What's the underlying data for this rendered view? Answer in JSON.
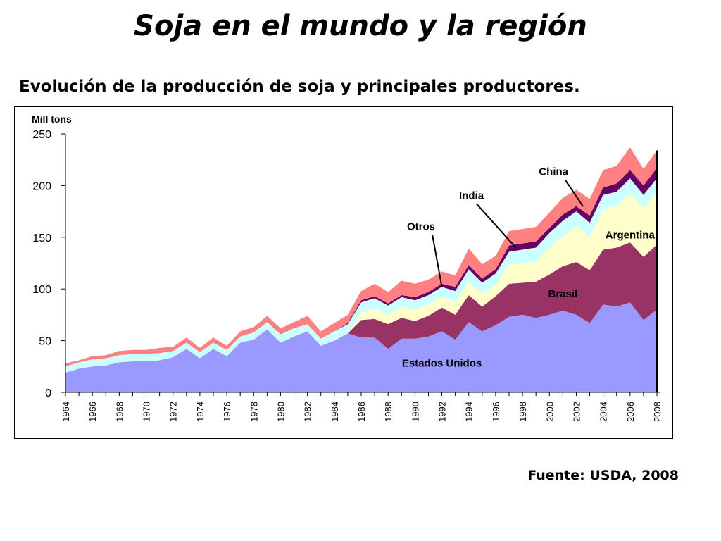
{
  "slide": {
    "title": "Soja en el mundo y la región",
    "subtitle": "Evolución de la producción de soja y principales productores.",
    "source": "Fuente: USDA, 2008"
  },
  "chart_data": {
    "type": "area",
    "stacked": true,
    "ylabel": "Mill tons",
    "ylim": [
      0,
      250
    ],
    "yticks": [
      0,
      50,
      100,
      150,
      200,
      250
    ],
    "x": [
      1964,
      1965,
      1966,
      1967,
      1968,
      1969,
      1970,
      1971,
      1972,
      1973,
      1974,
      1975,
      1976,
      1977,
      1978,
      1979,
      1980,
      1981,
      1982,
      1983,
      1984,
      1985,
      1986,
      1987,
      1988,
      1989,
      1990,
      1991,
      1992,
      1993,
      1994,
      1995,
      1996,
      1997,
      1998,
      1999,
      2000,
      2001,
      2002,
      2003,
      2004,
      2005,
      2006,
      2007,
      2008
    ],
    "xticks": [
      1964,
      1966,
      1968,
      1970,
      1972,
      1974,
      1976,
      1978,
      1980,
      1982,
      1984,
      1986,
      1988,
      1990,
      1992,
      1994,
      1996,
      1998,
      2000,
      2002,
      2004,
      2006,
      2008
    ],
    "series": [
      {
        "name": "Estados Unidos",
        "color": "#9999ff",
        "values": [
          19,
          23,
          25,
          26,
          29,
          30,
          30,
          31,
          34,
          42,
          33,
          42,
          35,
          48,
          51,
          61,
          48,
          54,
          59,
          45,
          50,
          57,
          53,
          53,
          42,
          52,
          52,
          54,
          59,
          51,
          68,
          59,
          65,
          73,
          75,
          72,
          75,
          79,
          75,
          67,
          85,
          83,
          87,
          70,
          80
        ]
      },
      {
        "name": "Brasil",
        "color": "#993366",
        "values": [
          0,
          0,
          0,
          0,
          0,
          0,
          0,
          0,
          0,
          0,
          0,
          0,
          0,
          0,
          0,
          0,
          0,
          0,
          0,
          0,
          0,
          0,
          17,
          18,
          24,
          20,
          17,
          20,
          23,
          24,
          26,
          24,
          28,
          32,
          31,
          35,
          39,
          43,
          51,
          51,
          53,
          57,
          58,
          61,
          63
        ]
      },
      {
        "name": "Argentina",
        "color": "#ffffcc",
        "values": [
          0,
          0,
          0,
          0,
          0,
          0,
          0,
          0,
          0,
          0,
          0,
          0,
          0,
          0,
          0,
          0,
          0,
          0,
          0,
          0,
          0,
          0,
          7,
          10,
          9,
          11,
          11,
          11,
          11,
          12,
          13,
          12,
          11,
          19,
          19,
          20,
          26,
          29,
          35,
          32,
          39,
          40,
          48,
          47,
          50
        ]
      },
      {
        "name": "Otros",
        "color": "#ccffff",
        "values": [
          6,
          6,
          7,
          7,
          7,
          7,
          7,
          7,
          6,
          6,
          6,
          6,
          6,
          6,
          7,
          7,
          8,
          8,
          7,
          7,
          9,
          9,
          10,
          10,
          9,
          9,
          9,
          9,
          9,
          11,
          12,
          11,
          11,
          12,
          13,
          13,
          14,
          15,
          14,
          14,
          14,
          14,
          14,
          13,
          14
        ]
      },
      {
        "name": "India",
        "color": "#660066",
        "values": [
          0,
          0,
          0,
          0,
          0,
          0,
          0,
          0,
          0,
          0,
          0,
          0,
          0,
          0,
          0,
          0,
          0,
          0,
          0,
          0,
          0,
          1,
          2,
          2,
          2,
          2,
          3,
          3,
          3,
          4,
          4,
          4,
          4,
          6,
          6,
          6,
          5,
          6,
          5,
          7,
          7,
          8,
          8,
          9,
          10
        ]
      },
      {
        "name": "China",
        "color": "#ff8080",
        "values": [
          3,
          2,
          3,
          3,
          4,
          4,
          4,
          5,
          4,
          5,
          4,
          5,
          4,
          5,
          5,
          6,
          6,
          6,
          8,
          7,
          8,
          8,
          9,
          12,
          11,
          14,
          13,
          12,
          12,
          11,
          16,
          14,
          13,
          14,
          14,
          14,
          15,
          16,
          16,
          16,
          17,
          17,
          22,
          16,
          17
        ]
      }
    ]
  }
}
